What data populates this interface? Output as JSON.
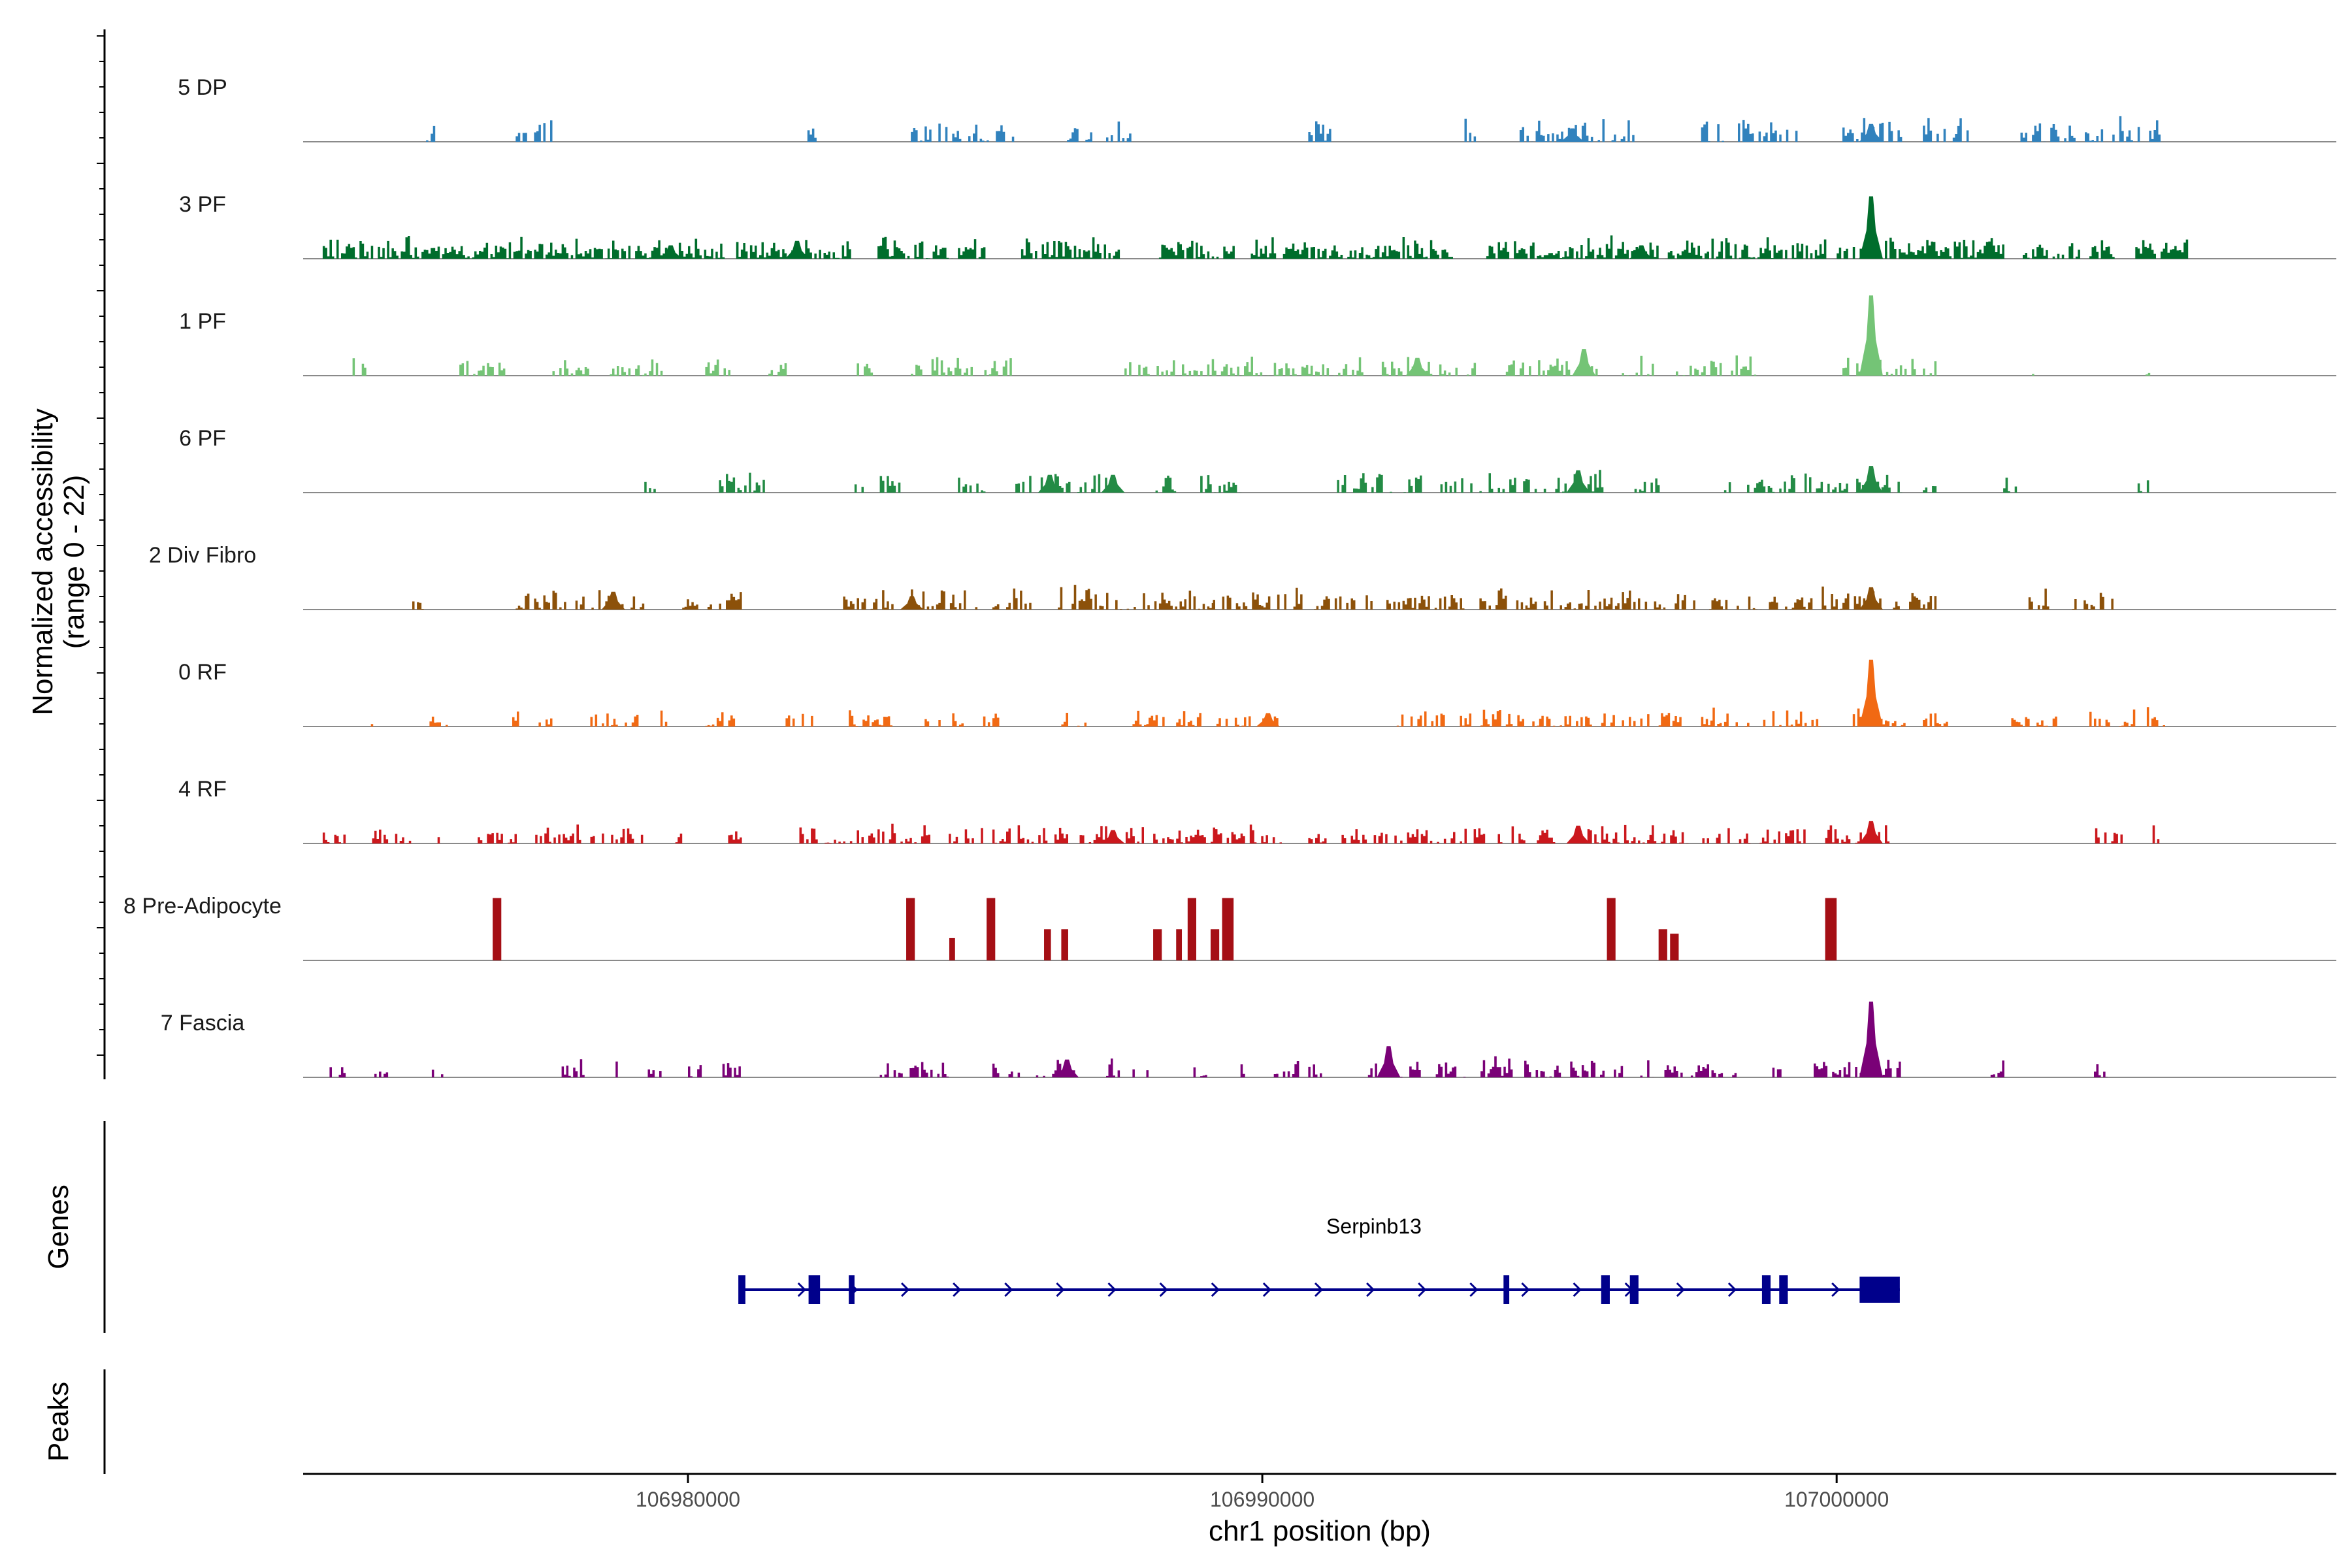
{
  "chart_data": {
    "type": "area",
    "title": "",
    "coverage": {
      "ylabel_line1": "Normalized accessibility",
      "ylabel_line2": "(range 0 - 22)",
      "ylim": [
        0,
        22
      ],
      "tracks": [
        {
          "name": "5 DP",
          "color": "#3182bd",
          "density": 0.55,
          "scale": 0.18,
          "seed": 11,
          "clusters": [
            [
              106975400,
              106975600
            ],
            [
              106977000,
              106977600
            ],
            [
              106982000,
              106982200
            ],
            [
              106983800,
              106985700
            ],
            [
              106986600,
              106987700
            ],
            [
              106990800,
              106991200
            ],
            [
              106993400,
              106993700
            ],
            [
              106994400,
              106996500
            ],
            [
              106997600,
              106999300
            ],
            [
              107000100,
              107001100
            ],
            [
              107001500,
              107002300
            ],
            [
              107003200,
              107004600
            ],
            [
              107004800,
              107005600
            ]
          ],
          "peaks": [
            [
              107000600,
              4
            ],
            [
              106995400,
              3
            ]
          ]
        },
        {
          "name": "3 PF",
          "color": "#006d2c",
          "density": 0.85,
          "scale": 0.16,
          "seed": 23,
          "clusters": [
            [
              106973600,
              106980600
            ],
            [
              106980800,
              106982800
            ],
            [
              106983300,
              106985200
            ],
            [
              106985800,
              106987500
            ],
            [
              106988200,
              106989500
            ],
            [
              106989800,
              106993300
            ],
            [
              106993900,
              106999800
            ],
            [
              107000000,
              107002900
            ],
            [
              107003200,
              107004200
            ],
            [
              107004400,
              107004800
            ],
            [
              107005200,
              107006100
            ]
          ],
          "peaks": [
            [
              107000600,
              14
            ],
            [
              106981900,
              4
            ],
            [
              106979700,
              3
            ],
            [
              106996600,
              3
            ]
          ]
        },
        {
          "name": "1 PF",
          "color": "#74c476",
          "density": 0.55,
          "scale": 0.14,
          "seed": 37,
          "clusters": [
            [
              106974000,
              106974400
            ],
            [
              106975900,
              106976800
            ],
            [
              106977600,
              106978300
            ],
            [
              106978600,
              106979600
            ],
            [
              106980300,
              106980700
            ],
            [
              106981400,
              106981700
            ],
            [
              106982900,
              106983200
            ],
            [
              106983800,
              106985600
            ],
            [
              106987600,
              106993700
            ],
            [
              106994200,
              106995800
            ],
            [
              106996100,
              106996800
            ],
            [
              106997200,
              106998600
            ],
            [
              107000100,
              107001200
            ],
            [
              107001300,
              107001800
            ],
            [
              107003200,
              107003400
            ],
            [
              107005300,
              107005500
            ]
          ],
          "peaks": [
            [
              107000600,
              18
            ],
            [
              106995600,
              6
            ],
            [
              106992700,
              4
            ]
          ]
        },
        {
          "name": "6 PF",
          "color": "#238b45",
          "density": 0.55,
          "scale": 0.16,
          "seed": 41,
          "clusters": [
            [
              106979200,
              106979400
            ],
            [
              106980500,
              106981300
            ],
            [
              106982900,
              106983800
            ],
            [
              106984700,
              106985200
            ],
            [
              106985700,
              106987500
            ],
            [
              106988100,
              106988500
            ],
            [
              106988800,
              106989600
            ],
            [
              106991300,
              106995900
            ],
            [
              106996400,
              106996900
            ],
            [
              106998000,
              106999600
            ],
            [
              106999600,
              107000500
            ],
            [
              107000300,
              107001100
            ],
            [
              107001500,
              107001700
            ],
            [
              107002900,
              107003100
            ],
            [
              107005200,
              107005400
            ]
          ],
          "peaks": [
            [
              107000600,
              6
            ],
            [
              106995500,
              5
            ],
            [
              106987400,
              4
            ],
            [
              106986300,
              4
            ]
          ]
        },
        {
          "name": "2 Div Fibro",
          "color": "#8c510a",
          "density": 0.6,
          "scale": 0.16,
          "seed": 53,
          "clusters": [
            [
              106975200,
              106975400
            ],
            [
              106977000,
              106979200
            ],
            [
              106979900,
              106980900
            ],
            [
              106982700,
              106983600
            ],
            [
              106983800,
              106985000
            ],
            [
              106985300,
              106986000
            ],
            [
              106986400,
              106989200
            ],
            [
              106989100,
              106991600
            ],
            [
              106991800,
              106993500
            ],
            [
              106993700,
              106997500
            ],
            [
              106997700,
              107000200
            ],
            [
              107000300,
              107001400
            ],
            [
              107001300,
              107001700
            ],
            [
              107003300,
              107003700
            ],
            [
              107004100,
              107004800
            ]
          ],
          "peaks": [
            [
              107000600,
              5
            ],
            [
              106978700,
              4
            ],
            [
              106983900,
              3
            ]
          ]
        },
        {
          "name": "0 RF",
          "color": "#f16913",
          "density": 0.55,
          "scale": 0.13,
          "seed": 67,
          "clusters": [
            [
              106974400,
              106974600
            ],
            [
              106975500,
              106975800
            ],
            [
              106976900,
              106977200
            ],
            [
              106977400,
              106977600
            ],
            [
              106978300,
              106979100
            ],
            [
              106979400,
              106979600
            ],
            [
              106980300,
              106980800
            ],
            [
              106981700,
              106982200
            ],
            [
              106982800,
              106983600
            ],
            [
              106984000,
              106984900
            ],
            [
              106985100,
              106985400
            ],
            [
              106986500,
              106986900
            ],
            [
              106987700,
              106988900
            ],
            [
              106989200,
              106990300
            ],
            [
              106992300,
              106993200
            ],
            [
              106993400,
              106994600
            ],
            [
              106994700,
              106996300
            ],
            [
              106996300,
              106997300
            ],
            [
              106997600,
              106998300
            ],
            [
              106998400,
              106999700
            ],
            [
              107000200,
              107001200
            ],
            [
              107001500,
              107001900
            ],
            [
              107003000,
              107003800
            ],
            [
              107004400,
              107005700
            ]
          ],
          "peaks": [
            [
              107000600,
              15
            ],
            [
              106990100,
              3
            ]
          ]
        },
        {
          "name": "4 RF",
          "color": "#cb181d",
          "density": 0.6,
          "scale": 0.13,
          "seed": 79,
          "clusters": [
            [
              106973600,
              106974000
            ],
            [
              106974500,
              106975200
            ],
            [
              106975600,
              106975800
            ],
            [
              106976300,
              106977000
            ],
            [
              106977300,
              106978100
            ],
            [
              106978300,
              106979200
            ],
            [
              106979700,
              106979900
            ],
            [
              106980700,
              106980900
            ],
            [
              106981900,
              106983400
            ],
            [
              106983500,
              106984300
            ],
            [
              106984500,
              106985200
            ],
            [
              106985300,
              106987900
            ],
            [
              106988100,
              106990300
            ],
            [
              106990800,
              106991100
            ],
            [
              106991300,
              106992300
            ],
            [
              106992400,
              106993900
            ],
            [
              106994100,
              106995100
            ],
            [
              106995500,
              106998100
            ],
            [
              106998300,
              106999000
            ],
            [
              106999100,
              106999600
            ],
            [
              106999800,
              107000400
            ],
            [
              107000400,
              107000900
            ],
            [
              107004500,
              107005000
            ],
            [
              107005500,
              107005600
            ]
          ],
          "peaks": [
            [
              107000600,
              5
            ],
            [
              106995500,
              4
            ],
            [
              106987400,
              3
            ]
          ]
        },
        {
          "name": "8 Pre-Adipocyte",
          "color": "#a50f15",
          "density": 1,
          "scale": 0,
          "seed": 0,
          "bars": [
            [
              106976600,
              106976750,
              14
            ],
            [
              106983800,
              106983950,
              14
            ],
            [
              106984550,
              106984650,
              5
            ],
            [
              106985200,
              106985350,
              14
            ],
            [
              106986200,
              106986320,
              7
            ],
            [
              106986500,
              106986620,
              7
            ],
            [
              106988100,
              106988250,
              7
            ],
            [
              106988500,
              106988600,
              7
            ],
            [
              106988700,
              106988850,
              14
            ],
            [
              106989100,
              106989250,
              7
            ],
            [
              106989300,
              106989500,
              14
            ],
            [
              106996000,
              106996150,
              14
            ],
            [
              106996900,
              106997050,
              7
            ],
            [
              106997100,
              106997250,
              6
            ],
            [
              106999800,
              107000000,
              14
            ]
          ],
          "clusters": [],
          "peaks": []
        },
        {
          "name": "7 Fascia",
          "color": "#7a0177",
          "density": 0.55,
          "scale": 0.14,
          "seed": 97,
          "clusters": [
            [
              106973600,
              106974000
            ],
            [
              106974500,
              106974800
            ],
            [
              106975500,
              106975700
            ],
            [
              106977800,
              106978200
            ],
            [
              106978700,
              106978800
            ],
            [
              106979300,
              106979500
            ],
            [
              106980000,
              106980200
            ],
            [
              106980600,
              106980900
            ],
            [
              106983300,
              106984500
            ],
            [
              106985300,
              106986800
            ],
            [
              106987200,
              106987500
            ],
            [
              106987700,
              106988200
            ],
            [
              106988800,
              106989000
            ],
            [
              106989500,
              106989700
            ],
            [
              106990200,
              106990600
            ],
            [
              106990800,
              106991000
            ],
            [
              106991800,
              106992800
            ],
            [
              106992900,
              106993500
            ],
            [
              106993800,
              106996300
            ],
            [
              106996500,
              106996800
            ],
            [
              106997000,
              106997300
            ],
            [
              106997300,
              106998300
            ],
            [
              106998800,
              106999000
            ],
            [
              106999600,
              107001100
            ],
            [
              107002600,
              107003000
            ],
            [
              107004400,
              107004700
            ]
          ],
          "peaks": [
            [
              107000600,
              17
            ],
            [
              106992200,
              7
            ],
            [
              106986600,
              4
            ]
          ]
        }
      ]
    },
    "genes": {
      "ylabel": "Genes",
      "name": "Serpinb13",
      "start": 106980900,
      "end": 107001100,
      "strand": "+",
      "exons": [
        [
          106980900,
          106981000
        ],
        [
          106982100,
          106982300
        ],
        [
          106982800,
          106982900
        ],
        [
          106994200,
          106994300
        ],
        [
          106995900,
          106996050
        ],
        [
          106996400,
          106996550
        ],
        [
          106998700,
          106998850
        ],
        [
          106999000,
          106999150
        ],
        [
          107000400,
          107001100
        ]
      ]
    },
    "peaks_track": {
      "ylabel": "Peaks",
      "peaks": []
    },
    "x_axis": {
      "label": "chr1 position (bp)",
      "xlim": [
        106973300,
        107008700
      ],
      "ticks": [
        106980000,
        106990000,
        107000000
      ],
      "tick_labels": [
        "106980000",
        "106990000",
        "107000000"
      ]
    }
  }
}
